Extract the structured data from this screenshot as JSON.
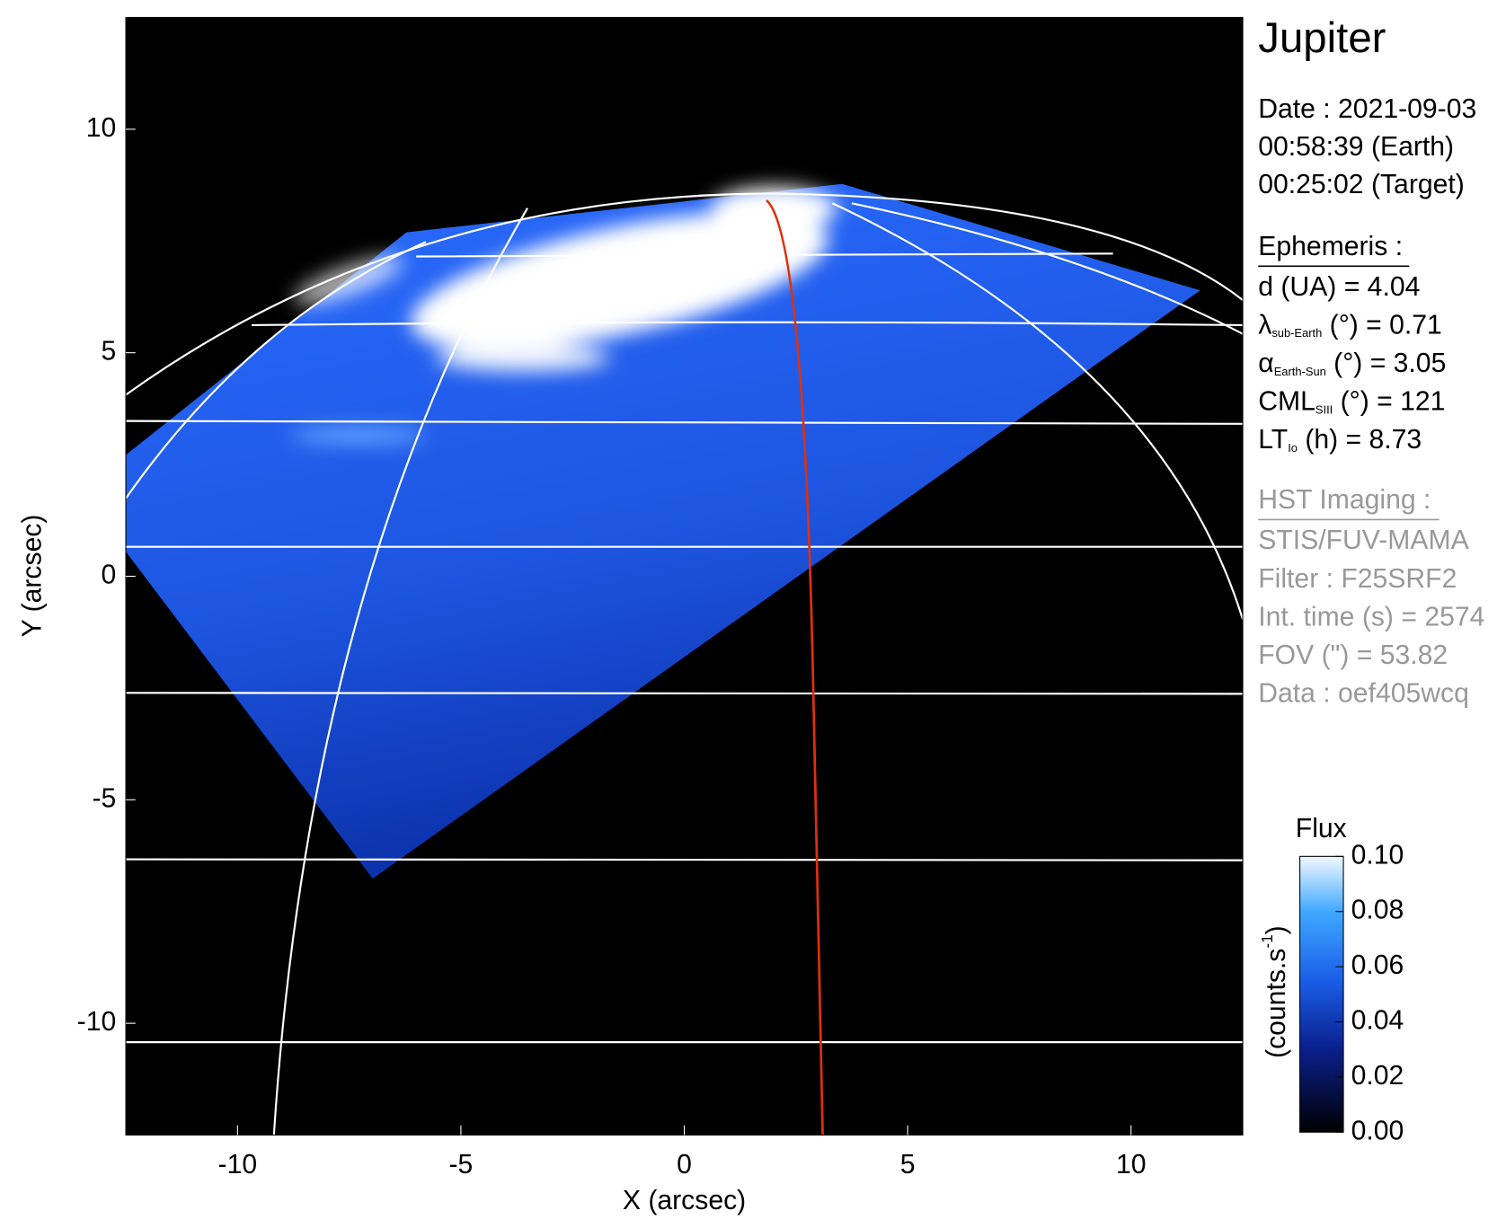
{
  "chart_data": {
    "type": "image",
    "xlabel": "X (arcsec)",
    "ylabel": "Y (arcsec)",
    "xlim": [
      -12.5,
      12.5
    ],
    "ylim": [
      -12.5,
      12.5
    ],
    "xticks": [
      -10,
      -5,
      0,
      5,
      10
    ],
    "yticks": [
      -10,
      -5,
      0,
      5,
      10
    ],
    "colorbar": {
      "title": "Flux",
      "label": "(counts.s",
      "label_sup": "-1",
      "label_end": ")",
      "ylim": [
        0,
        0.1
      ],
      "yticks": [
        {
          "value": 0,
          "label": "0.00"
        },
        {
          "value": 0.02,
          "label": "0.02"
        },
        {
          "value": 0.04,
          "label": "0.04"
        },
        {
          "value": 0.06,
          "label": "0.06"
        },
        {
          "value": 0.08,
          "label": "0.08"
        },
        {
          "value": 0.1,
          "label": "0.10"
        }
      ]
    }
  },
  "info": {
    "title": "Jupiter",
    "date": [
      "Date : 2021-09-03",
      "00:58:39 (Earth)",
      "00:25:02 (Target)"
    ],
    "ephemeris_title": "Ephemeris :",
    "ephemeris": [
      {
        "main": "d (UA)    = 4.04",
        "sub": "",
        "rest": ""
      },
      {
        "main": "λ",
        "sub": "sub-Earth",
        "rest": " (°) = 0.71"
      },
      {
        "main": "α",
        "sub": "Earth-Sun",
        "rest": " (°) = 3.05"
      },
      {
        "main": "CML",
        "sub": "SIII",
        "rest": " (°) = 121"
      },
      {
        "main": "LT",
        "sub": "Io",
        "rest": " (h) = 8.73"
      }
    ],
    "imaging_title": "HST Imaging :",
    "imaging": [
      "STIS/FUV-MAMA",
      "Filter : F25SRF2",
      "Int. time (s) = 2574",
      "FOV (\") = 53.82",
      "Data : oef405wcq"
    ]
  }
}
